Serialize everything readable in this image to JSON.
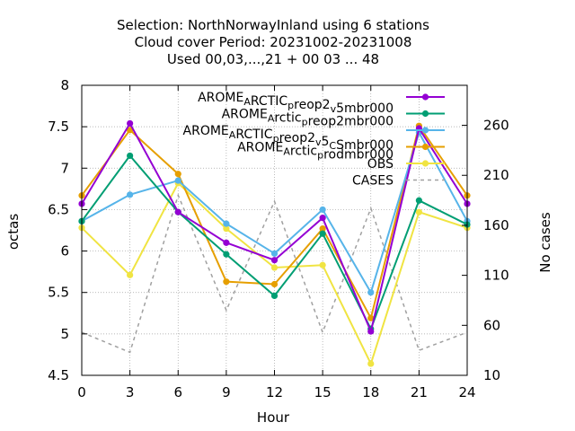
{
  "chart_data": {
    "type": "line",
    "title_lines": [
      "Selection: NorthNorwayInland using     6 stations",
      "Cloud cover   Period: 20231002-20231008",
      "Used  00,03,...,21  + 00 03 ... 48"
    ],
    "xlabel": "Hour",
    "ylabel": "octas",
    "y2label": "No cases",
    "x": [
      0,
      3,
      6,
      9,
      12,
      15,
      18,
      21,
      24
    ],
    "xlim": [
      0,
      24
    ],
    "ylim": [
      4.5,
      8
    ],
    "y2lim": [
      10,
      300
    ],
    "xticks": [
      "0",
      "3",
      "6",
      "9",
      "12",
      "15",
      "18",
      "21",
      "24"
    ],
    "yticks": [
      "4.5",
      "5",
      "5.5",
      "6",
      "6.5",
      "7",
      "7.5",
      "8"
    ],
    "y2ticks": [
      "10",
      "60",
      "110",
      "160",
      "210",
      "260"
    ],
    "grid": true,
    "legend_position": "top-right",
    "series": [
      {
        "label_parts": [
          [
            "AROME",
            ""
          ],
          [
            "A",
            "sub"
          ],
          [
            "RCTIC",
            ""
          ],
          [
            "p",
            "sub"
          ],
          [
            "reop2",
            ""
          ],
          [
            "v",
            "sub"
          ],
          [
            "5mbr000",
            ""
          ]
        ],
        "color": "#9400d3",
        "marker": "circle",
        "axis": "y",
        "values": [
          6.57,
          7.54,
          6.47,
          6.1,
          5.89,
          6.4,
          5.03,
          7.48,
          6.57
        ]
      },
      {
        "label_parts": [
          [
            "AROME",
            ""
          ],
          [
            "A",
            "sub"
          ],
          [
            "rctic",
            ""
          ],
          [
            "p",
            "sub"
          ],
          [
            "reop2mbr000",
            ""
          ]
        ],
        "color": "#009e73",
        "marker": "circle",
        "axis": "y",
        "values": [
          6.36,
          7.15,
          6.47,
          5.96,
          5.46,
          6.21,
          5.06,
          6.61,
          6.32
        ]
      },
      {
        "label_parts": [
          [
            "AROME",
            ""
          ],
          [
            "A",
            "sub"
          ],
          [
            "RCTIC",
            ""
          ],
          [
            "p",
            "sub"
          ],
          [
            "reop2",
            ""
          ],
          [
            "v",
            "sub"
          ],
          [
            "5",
            ""
          ],
          [
            "C",
            "sub"
          ],
          [
            "Smbr000",
            ""
          ]
        ],
        "color": "#56b4e9",
        "marker": "circle",
        "axis": "y",
        "values": [
          6.36,
          6.68,
          6.85,
          6.33,
          5.97,
          6.5,
          5.5,
          7.43,
          6.36
        ]
      },
      {
        "label_parts": [
          [
            "AROME",
            ""
          ],
          [
            "A",
            "sub"
          ],
          [
            "rctic",
            ""
          ],
          [
            "p",
            "sub"
          ],
          [
            "rodmbr000",
            ""
          ]
        ],
        "color": "#e69f00",
        "marker": "circle",
        "axis": "y",
        "values": [
          6.67,
          7.46,
          6.93,
          5.63,
          5.6,
          6.27,
          5.19,
          7.51,
          6.67
        ]
      },
      {
        "label_parts": [
          [
            "OBS",
            ""
          ]
        ],
        "color": "#f0e442",
        "marker": "circle",
        "axis": "y",
        "values": [
          6.28,
          5.71,
          6.82,
          6.27,
          5.8,
          5.83,
          4.64,
          6.47,
          6.28
        ]
      },
      {
        "label_parts": [
          [
            "CASES",
            ""
          ]
        ],
        "color": "#a0a0a0",
        "marker": "none",
        "dashed": true,
        "axis": "y2",
        "values": [
          53,
          33,
          190,
          75,
          184,
          53,
          177,
          35,
          53
        ]
      }
    ]
  }
}
